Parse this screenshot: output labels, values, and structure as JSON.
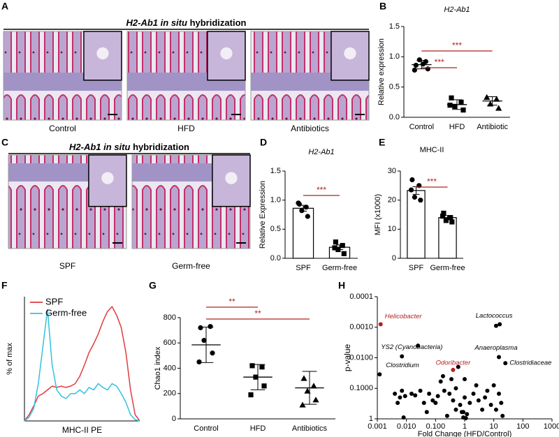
{
  "chart_data": [
    {
      "type": "micrograph",
      "panel": "A",
      "title_italic": "H2-Ab1 in situ",
      "title": "hybridization",
      "labels": [
        "Control",
        "HFD",
        "Antibiotics"
      ]
    },
    {
      "type": "dot",
      "panel": "B",
      "title": "H2-Ab1",
      "ylabel": "Relative expression",
      "categories": [
        "Control",
        "HFD",
        "Antibiotic"
      ],
      "markers": [
        "circle",
        "square",
        "triangle"
      ],
      "points": [
        [
          0.86,
          0.92,
          0.95,
          0.8,
          0.78,
          0.88
        ],
        [
          0.32,
          0.25,
          0.18,
          0.12,
          0.2
        ],
        [
          0.33,
          0.3,
          0.22,
          0.15
        ]
      ],
      "mean": [
        0.87,
        0.21,
        0.27
      ],
      "sd": [
        0.07,
        0.08,
        0.07
      ],
      "ylim": [
        0,
        1.5
      ],
      "yticks": [
        {
          "value": 0,
          "label": "0.0"
        },
        {
          "value": 0.5,
          "label": "0.5"
        },
        {
          "value": 1,
          "label": "1.0"
        },
        {
          "value": 1.5,
          "label": "1.5"
        }
      ],
      "significance": [
        "***",
        "***"
      ],
      "significance_color": "#b22222"
    },
    {
      "type": "micrograph",
      "panel": "C",
      "title_italic": "H2-Ab1 in situ",
      "title": "hybridization",
      "labels": [
        "SPF",
        "Germ-free"
      ]
    },
    {
      "type": "bar",
      "panel": "D",
      "title": "H2-Ab1",
      "ylabel": "Relative Expression",
      "categories": [
        "SPF",
        "Germ-free"
      ],
      "markers": [
        "circle",
        "square"
      ],
      "values": [
        0.86,
        0.19
      ],
      "errors": [
        0.05,
        0.04
      ],
      "points": [
        [
          0.93,
          0.88,
          0.82,
          0.72,
          0.95
        ],
        [
          0.28,
          0.22,
          0.15,
          0.08,
          0.18
        ]
      ],
      "ylim": [
        0,
        1.5
      ],
      "yticks": [
        {
          "value": 0,
          "label": "0.0"
        },
        {
          "value": 0.5,
          "label": "0.5"
        },
        {
          "value": 1,
          "label": "1.0"
        },
        {
          "value": 1.5,
          "label": "1.5"
        }
      ],
      "significance": [
        "***"
      ],
      "significance_color": "#b22222"
    },
    {
      "type": "bar",
      "panel": "E",
      "title": "MHC-II",
      "ylabel": "MFI (x1000)",
      "categories": [
        "SPF",
        "Germ-free"
      ],
      "markers": [
        "circle",
        "square"
      ],
      "values": [
        23.3,
        14
      ],
      "errors": [
        1.3,
        0.7
      ],
      "points": [
        [
          27,
          25,
          21,
          20,
          23.5
        ],
        [
          15.5,
          14,
          13,
          12.5,
          14.5
        ]
      ],
      "ylim": [
        0,
        30
      ],
      "yticks": [
        0,
        10,
        20,
        30
      ],
      "significance": [
        "***"
      ],
      "significance_color": "#b22222"
    },
    {
      "type": "line",
      "panel": "F",
      "ylabel": "% of max",
      "xlabel": "MHC-II PE",
      "x": [
        0,
        4,
        8,
        12,
        16,
        20,
        24,
        28,
        32,
        36,
        40,
        44,
        48,
        52,
        56,
        60,
        64,
        68,
        72,
        76,
        80,
        84,
        88,
        92,
        96,
        100
      ],
      "xlim": [
        0,
        100
      ],
      "ylim": [
        0,
        100
      ],
      "series": [
        {
          "name": "SPF",
          "color": "#e03c3c",
          "values": [
            0,
            5,
            12,
            20,
            22,
            25,
            28,
            27,
            28,
            27,
            28,
            30,
            36,
            45,
            55,
            62,
            70,
            80,
            88,
            92,
            85,
            75,
            55,
            25,
            5,
            0
          ]
        },
        {
          "name": "Germ-free",
          "color": "#33c0e0",
          "values": [
            0,
            3,
            10,
            30,
            60,
            90,
            45,
            25,
            20,
            18,
            22,
            22,
            25,
            22,
            27,
            25,
            30,
            27,
            25,
            30,
            28,
            22,
            15,
            5,
            1,
            0
          ]
        }
      ],
      "legend": "top-left"
    },
    {
      "type": "dot",
      "panel": "G",
      "ylabel": "Chao1 index",
      "categories": [
        "Control",
        "HFD",
        "Antibiotics"
      ],
      "markers": [
        "circle",
        "square",
        "triangle"
      ],
      "points": [
        [
          720,
          730,
          620,
          520,
          450
        ],
        [
          420,
          410,
          330,
          260,
          190
        ],
        [
          320,
          260,
          220,
          150,
          110
        ]
      ],
      "mean": [
        585,
        330,
        245
      ],
      "sd": [
        140,
        100,
        130
      ],
      "ylim": [
        0,
        800
      ],
      "yticks": [
        0,
        200,
        400,
        600,
        800
      ],
      "significance": [
        "**",
        "**"
      ],
      "significance_color": "#b22222"
    },
    {
      "type": "scatter",
      "panel": "H",
      "xlabel": "Fold Change (HFD/Control)",
      "ylabel": "p-value",
      "xlog": true,
      "ylog": true,
      "yreverse": true,
      "xlim": [
        0.001,
        1000
      ],
      "ylim": [
        1,
        0.0001
      ],
      "xticks": [
        0.001,
        {
          "value": 0.01,
          "label": "0.010"
        },
        {
          "value": 0.1,
          "label": "0.100"
        },
        1,
        10,
        100,
        1000
      ],
      "yticks": [
        0.0001,
        {
          "value": 0.001,
          "label": "0.0010"
        },
        {
          "value": 0.01,
          "label": "0.0100"
        },
        {
          "value": 0.1,
          "label": "0.1000"
        },
        1
      ],
      "color": "#000000",
      "x": [
        0.004,
        0.005,
        0.006,
        0.007,
        0.008,
        0.009,
        0.015,
        0.02,
        0.025,
        0.03,
        0.04,
        0.05,
        0.06,
        0.08,
        0.1,
        0.12,
        0.15,
        0.18,
        0.2,
        0.25,
        0.3,
        0.35,
        0.4,
        0.5,
        0.5,
        0.6,
        0.7,
        0.8,
        0.9,
        1.0,
        1.0,
        1.2,
        1.5,
        2,
        2.5,
        3,
        4,
        5,
        6,
        8,
        10,
        12,
        15,
        18,
        20,
        1.1,
        0.9,
        12
      ],
      "values": [
        0.15,
        0.3,
        0.2,
        0.12,
        0.9,
        0.18,
        0.15,
        0.17,
        0.004,
        0.12,
        0.3,
        0.6,
        0.15,
        0.25,
        0.3,
        0.18,
        0.06,
        0.04,
        0.12,
        0.8,
        0.15,
        0.05,
        0.25,
        0.1,
        0.5,
        0.02,
        0.35,
        0.6,
        0.9,
        0.05,
        0.2,
        0.7,
        0.3,
        0.15,
        0.08,
        0.25,
        0.5,
        0.2,
        0.12,
        0.35,
        0.08,
        0.5,
        0.15,
        0.3,
        0.8,
        0.95,
        0.6,
        0.0009
      ],
      "labeled": [
        {
          "label": "Helicobacter",
          "x": 0.0013,
          "y": 0.0008,
          "color": "#b22222"
        },
        {
          "label": "Lactococcus",
          "x": 16,
          "y": 0.0008,
          "color": "#000000"
        },
        {
          "label": "Anaeroplasma",
          "x": 15,
          "y": 0.0095,
          "color": "#000000"
        },
        {
          "label": "Clostridiaceae",
          "x": 25,
          "y": 0.015,
          "color": "#000000"
        },
        {
          "label": "YS2 (Cyanobacteria)",
          "x": 0.007,
          "y": 0.009,
          "color": "#000000"
        },
        {
          "label": "Odoribacter",
          "x": 0.4,
          "y": 0.025,
          "color": "#b22222"
        },
        {
          "label": "Clostridium",
          "x": 0.0012,
          "y": 0.035,
          "color": "#000000"
        }
      ]
    }
  ]
}
